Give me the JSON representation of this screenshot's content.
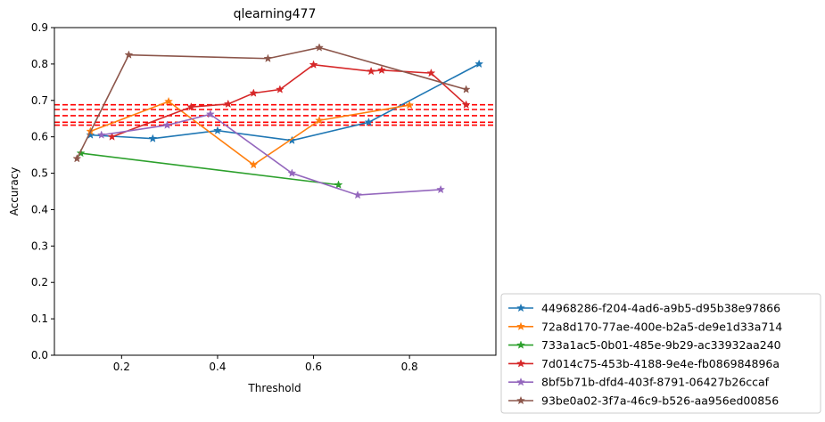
{
  "chart_data": {
    "type": "line",
    "title": "qlearning477",
    "xlabel": "Threshold",
    "ylabel": "Accuracy",
    "xlim": [
      0.06,
      0.98
    ],
    "ylim": [
      0.0,
      0.9
    ],
    "xticks": [
      0.2,
      0.4,
      0.6,
      0.8
    ],
    "xtick_labels": [
      "0.2",
      "0.4",
      "0.6",
      "0.8"
    ],
    "yticks": [
      0.0,
      0.1,
      0.2,
      0.3,
      0.4,
      0.5,
      0.6,
      0.7,
      0.8,
      0.9
    ],
    "ytick_labels": [
      "0.0",
      "0.1",
      "0.2",
      "0.3",
      "0.4",
      "0.5",
      "0.6",
      "0.7",
      "0.8",
      "0.9"
    ],
    "grid": false,
    "legend_position": "outside-lower-right",
    "marker": "star",
    "series": [
      {
        "name": "44968286-f204-4ad6-a9b5-d95b38e97866",
        "color": "#1f77b4",
        "x": [
          0.135,
          0.265,
          0.4,
          0.555,
          0.715,
          0.945
        ],
        "y": [
          0.605,
          0.595,
          0.617,
          0.59,
          0.64,
          0.8
        ]
      },
      {
        "name": "72a8d170-77ae-400e-b2a5-de9e1d33a714",
        "color": "#ff7f0e",
        "x": [
          0.135,
          0.298,
          0.475,
          0.612,
          0.8
        ],
        "y": [
          0.615,
          0.697,
          0.523,
          0.645,
          0.687
        ]
      },
      {
        "name": "733a1ac5-0b01-485e-9b29-ac33932aa240",
        "color": "#2ca02c",
        "x": [
          0.115,
          0.652
        ],
        "y": [
          0.555,
          0.468
        ]
      },
      {
        "name": "7d014c75-453b-4188-9e4e-fb086984896a",
        "color": "#d62728",
        "x": [
          0.18,
          0.345,
          0.422,
          0.475,
          0.53,
          0.6,
          0.72,
          0.742,
          0.845,
          0.918
        ],
        "y": [
          0.6,
          0.682,
          0.69,
          0.72,
          0.73,
          0.798,
          0.78,
          0.783,
          0.775,
          0.688
        ]
      },
      {
        "name": "8bf5b71b-dfd4-403f-8791-06427b26ccaf",
        "color": "#9467bd",
        "x": [
          0.158,
          0.295,
          0.385,
          0.555,
          0.692,
          0.865
        ],
        "y": [
          0.605,
          0.632,
          0.662,
          0.5,
          0.44,
          0.455
        ]
      },
      {
        "name": "93be0a02-3f7a-46c9-b526-aa956ed00856",
        "color": "#8c564b",
        "x": [
          0.107,
          0.215,
          0.505,
          0.612,
          0.918
        ],
        "y": [
          0.54,
          0.825,
          0.815,
          0.845,
          0.73
        ]
      }
    ],
    "hlines": {
      "color": "#ff0000",
      "style": "dashed",
      "y": [
        0.632,
        0.64,
        0.658,
        0.675,
        0.688
      ]
    }
  }
}
